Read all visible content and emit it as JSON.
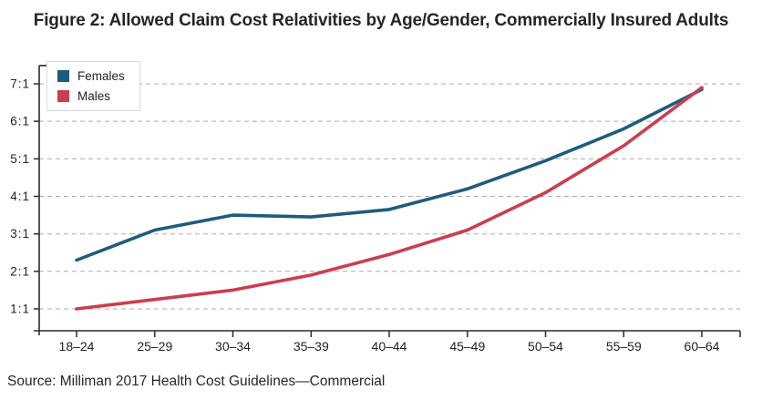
{
  "figure": {
    "title": "Figure 2: Allowed Claim Cost Relativities by Age/Gender, Commercially Insured Adults",
    "source": "Source: Milliman 2017 Health Cost Guidelines—Commercial"
  },
  "legend": {
    "position": "top-left",
    "items": [
      {
        "label": "Females",
        "color": "#1e5c7d"
      },
      {
        "label": "Males",
        "color": "#ca3e4f"
      }
    ]
  },
  "chart_data": {
    "type": "line",
    "title": "Figure 2: Allowed Claim Cost Relativities by Age/Gender, Commercially Insured Adults",
    "categories": [
      "18–24",
      "25–29",
      "30–34",
      "35–39",
      "40–44",
      "45–49",
      "50–54",
      "55–59",
      "60–64"
    ],
    "series": [
      {
        "name": "Females",
        "color": "#1e5c7d",
        "values": [
          2.3,
          3.1,
          3.5,
          3.45,
          3.65,
          4.2,
          4.95,
          5.8,
          6.85
        ]
      },
      {
        "name": "Males",
        "color": "#ca3e4f",
        "values": [
          1.0,
          1.25,
          1.5,
          1.9,
          2.45,
          3.1,
          4.1,
          5.35,
          6.9
        ]
      }
    ],
    "xlabel": "",
    "ylabel": "",
    "y_ticks": [
      "7:1",
      "6:1",
      "5:1",
      "4:1",
      "3:1",
      "2:1",
      "1:1"
    ],
    "y_tick_values": [
      7,
      6,
      5,
      4,
      3,
      2,
      1
    ],
    "ylim": [
      1,
      7
    ],
    "grid": "horizontal-dashed",
    "legend_position": "top-left"
  },
  "colors": {
    "grid": "#ababab",
    "axis": "#2b2b2b",
    "tick_label": "#222222",
    "title": "#262626",
    "source": "#262626",
    "legend_border": "#d9d9d9",
    "background": "#ffffff"
  }
}
